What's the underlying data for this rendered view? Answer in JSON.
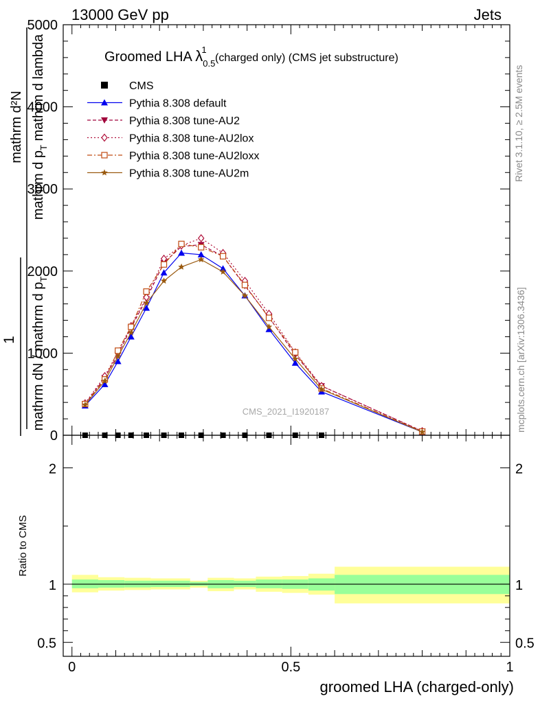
{
  "header": {
    "left": "13000 GeV pp",
    "right": "Jets"
  },
  "title": {
    "main": "Groomed LHA ",
    "lambda": "λ",
    "sub": "0.5",
    "sup": "1",
    "rest": " (charged only) (CMS jet substructure)"
  },
  "side_labels": {
    "rivet": "Rivet 3.1.10, ≥ 2.5M events",
    "mcplots": "mcplots.cern.ch [arXiv:1306.3436]"
  },
  "watermark": "CMS_2021_I1920187",
  "colors": {
    "cms": "#000000",
    "default": "#0000ee",
    "au2": "#a0003a",
    "au2lox": "#b0103a",
    "au2loxx": "#c04a10",
    "au2m": "#9a5a10",
    "band_inner": "#99ff99",
    "band_outer": "#ffff99"
  },
  "chart_data": [
    {
      "type": "line",
      "panel": "main",
      "ylabel": {
        "prefix": "1",
        "num": "mathrm d²N",
        "den1": "mathrm dN / mathrm d p",
        "den1_sub": "T",
        "den2": "mathrm d p",
        "den2_sub": "T",
        "den3": " mathrm d lambda"
      },
      "ylim": [
        0,
        5000
      ],
      "xlim": [
        -0.02,
        1.0
      ],
      "yticks": [
        {
          "v": 0,
          "label": "0"
        },
        {
          "v": 1000,
          "label": "1000"
        },
        {
          "v": 2000,
          "label": "2000"
        },
        {
          "v": 3000,
          "label": "3000"
        },
        {
          "v": 4000,
          "label": "4000"
        },
        {
          "v": 5000,
          "label": "5000"
        }
      ],
      "legend_position": "top-left",
      "series": [
        {
          "key": "cms",
          "name": "CMS",
          "marker": "square",
          "dash": "none",
          "x": [
            0.03,
            0.075,
            0.105,
            0.135,
            0.17,
            0.21,
            0.25,
            0.295,
            0.345,
            0.395,
            0.45,
            0.51,
            0.57
          ],
          "y": [
            0,
            0,
            0,
            0,
            0,
            0,
            0,
            0,
            0,
            0,
            0,
            0,
            0
          ]
        },
        {
          "key": "default",
          "name": "Pythia 8.308 default",
          "marker": "triangle-up",
          "dash": "solid",
          "x": [
            0.03,
            0.075,
            0.105,
            0.135,
            0.17,
            0.21,
            0.25,
            0.295,
            0.345,
            0.395,
            0.45,
            0.51,
            0.57,
            0.8
          ],
          "y": [
            360,
            620,
            900,
            1200,
            1550,
            1980,
            2220,
            2200,
            2030,
            1700,
            1290,
            880,
            530,
            40
          ]
        },
        {
          "key": "au2",
          "name": "Pythia 8.308 tune-AU2",
          "marker": "triangle-down",
          "dash": "dash",
          "x": [
            0.03,
            0.075,
            0.105,
            0.135,
            0.17,
            0.21,
            0.25,
            0.295,
            0.345,
            0.395,
            0.45,
            0.51,
            0.57,
            0.8
          ],
          "y": [
            380,
            700,
            980,
            1310,
            1660,
            2100,
            2300,
            2320,
            2180,
            1820,
            1440,
            980,
            600,
            50
          ]
        },
        {
          "key": "au2lox",
          "name": "Pythia 8.308 tune-AU2lox",
          "marker": "diamond",
          "dash": "dot",
          "x": [
            0.03,
            0.075,
            0.105,
            0.135,
            0.17,
            0.21,
            0.25,
            0.295,
            0.345,
            0.395,
            0.45,
            0.51,
            0.57,
            0.8
          ],
          "y": [
            390,
            720,
            1010,
            1330,
            1680,
            2150,
            2310,
            2400,
            2220,
            1880,
            1480,
            1010,
            600,
            50
          ]
        },
        {
          "key": "au2loxx",
          "name": "Pythia 8.308 tune-AU2loxx",
          "marker": "open-square",
          "dash": "dashdot",
          "x": [
            0.03,
            0.075,
            0.105,
            0.135,
            0.17,
            0.21,
            0.25,
            0.295,
            0.345,
            0.395,
            0.45,
            0.51,
            0.57,
            0.8
          ],
          "y": [
            380,
            680,
            1030,
            1320,
            1750,
            2080,
            2330,
            2290,
            2180,
            1830,
            1430,
            1010,
            570,
            45
          ]
        },
        {
          "key": "au2m",
          "name": "Pythia 8.308 tune-AU2m",
          "marker": "star",
          "dash": "solid",
          "x": [
            0.03,
            0.075,
            0.105,
            0.135,
            0.17,
            0.21,
            0.25,
            0.295,
            0.345,
            0.395,
            0.45,
            0.51,
            0.57,
            0.8
          ],
          "y": [
            370,
            660,
            960,
            1250,
            1610,
            1880,
            2050,
            2140,
            1990,
            1700,
            1320,
            930,
            560,
            40
          ]
        }
      ]
    },
    {
      "type": "area",
      "panel": "ratio",
      "ylabel": "Ratio to CMS",
      "xlabel": "groomed LHA (charged-only)",
      "xlim": [
        -0.02,
        1.0
      ],
      "ylim": [
        0.38,
        2.28
      ],
      "xticks": [
        {
          "v": 0,
          "label": "0"
        },
        {
          "v": 0.5,
          "label": "0.5"
        },
        {
          "v": 1,
          "label": "1"
        }
      ],
      "yticks": [
        {
          "v": 0.5,
          "label": "0.5"
        },
        {
          "v": 1,
          "label": "1"
        },
        {
          "v": 2,
          "label": "2"
        }
      ],
      "bins": [
        {
          "lo": 0.0,
          "hi": 0.06,
          "inner": [
            0.965,
            1.04
          ],
          "outer": [
            0.93,
            1.08
          ]
        },
        {
          "lo": 0.06,
          "hi": 0.12,
          "inner": [
            0.97,
            1.035
          ],
          "outer": [
            0.945,
            1.06
          ]
        },
        {
          "lo": 0.12,
          "hi": 0.18,
          "inner": [
            0.972,
            1.03
          ],
          "outer": [
            0.95,
            1.055
          ]
        },
        {
          "lo": 0.18,
          "hi": 0.27,
          "inner": [
            0.975,
            1.03
          ],
          "outer": [
            0.955,
            1.05
          ]
        },
        {
          "lo": 0.27,
          "hi": 0.31,
          "inner": [
            0.985,
            1.02
          ],
          "outer": [
            0.97,
            1.03
          ]
        },
        {
          "lo": 0.31,
          "hi": 0.37,
          "inner": [
            0.965,
            1.035
          ],
          "outer": [
            0.94,
            1.055
          ]
        },
        {
          "lo": 0.37,
          "hi": 0.42,
          "inner": [
            0.975,
            1.03
          ],
          "outer": [
            0.955,
            1.05
          ]
        },
        {
          "lo": 0.42,
          "hi": 0.48,
          "inner": [
            0.965,
            1.04
          ],
          "outer": [
            0.935,
            1.065
          ]
        },
        {
          "lo": 0.48,
          "hi": 0.54,
          "inner": [
            0.96,
            1.04
          ],
          "outer": [
            0.925,
            1.07
          ]
        },
        {
          "lo": 0.54,
          "hi": 0.6,
          "inner": [
            0.945,
            1.05
          ],
          "outer": [
            0.91,
            1.09
          ]
        },
        {
          "lo": 0.6,
          "hi": 1.0,
          "inner": [
            0.915,
            1.08
          ],
          "outer": [
            0.835,
            1.15
          ]
        }
      ]
    }
  ]
}
